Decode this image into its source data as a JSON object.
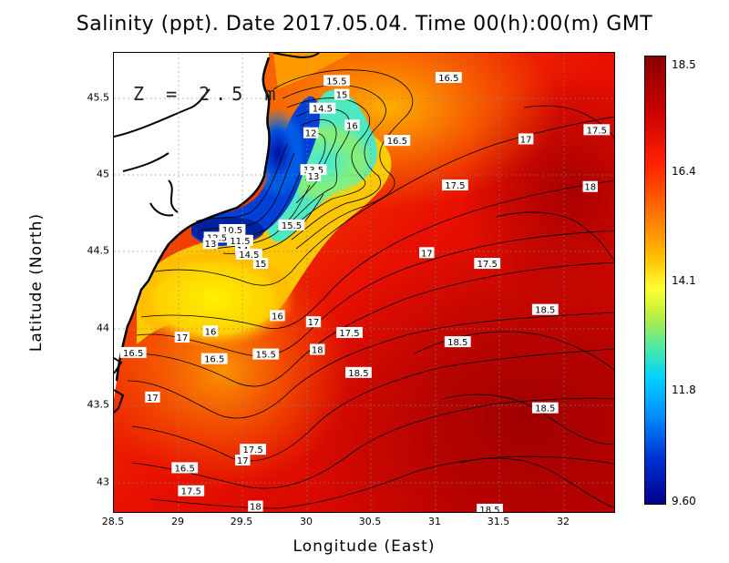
{
  "title": "Salinity (ppt). Date 2017.05.04. Time 00(h):00(m) GMT",
  "depth_label": "Z = 2.5 m",
  "x_axis": {
    "label": "Longitude (East)",
    "ticks": [
      "28.5",
      "29",
      "29.5",
      "30",
      "30.5",
      "31",
      "31.5",
      "32"
    ]
  },
  "y_axis": {
    "label": "Latitude (North)",
    "ticks": [
      "43",
      "43.5",
      "44",
      "44.5",
      "45",
      "45.5"
    ]
  },
  "colorbar": {
    "ticks": [
      "18.5",
      "16.4",
      "14.1",
      "11.8",
      "9.60"
    ],
    "min": 9.6,
    "max": 18.5
  },
  "contour_labels": [
    {
      "text": "15.5",
      "lon": 30.23,
      "lat": 45.62
    },
    {
      "text": "16.5",
      "lon": 31.1,
      "lat": 45.64
    },
    {
      "text": "15",
      "lon": 30.27,
      "lat": 45.53
    },
    {
      "text": "14.5",
      "lon": 30.12,
      "lat": 45.44
    },
    {
      "text": "16",
      "lon": 30.35,
      "lat": 45.33
    },
    {
      "text": "12",
      "lon": 30.03,
      "lat": 45.28
    },
    {
      "text": "16.5",
      "lon": 30.7,
      "lat": 45.23
    },
    {
      "text": "17",
      "lon": 31.7,
      "lat": 45.24
    },
    {
      "text": "17.5",
      "lon": 32.25,
      "lat": 45.3
    },
    {
      "text": "13.5",
      "lon": 30.05,
      "lat": 45.04
    },
    {
      "text": "13",
      "lon": 30.05,
      "lat": 45.0
    },
    {
      "text": "17.5",
      "lon": 31.15,
      "lat": 44.94
    },
    {
      "text": "18",
      "lon": 32.2,
      "lat": 44.93
    },
    {
      "text": "15.5",
      "lon": 29.88,
      "lat": 44.68
    },
    {
      "text": "10.5",
      "lon": 29.42,
      "lat": 44.65
    },
    {
      "text": "12.5",
      "lon": 29.3,
      "lat": 44.6
    },
    {
      "text": "11.5",
      "lon": 29.48,
      "lat": 44.58
    },
    {
      "text": "13",
      "lon": 29.25,
      "lat": 44.56
    },
    {
      "text": "14",
      "lon": 29.5,
      "lat": 44.52
    },
    {
      "text": "14.5",
      "lon": 29.55,
      "lat": 44.49
    },
    {
      "text": "15",
      "lon": 29.64,
      "lat": 44.43
    },
    {
      "text": "17",
      "lon": 30.93,
      "lat": 44.5
    },
    {
      "text": "17.5",
      "lon": 31.4,
      "lat": 44.43
    },
    {
      "text": "18.5",
      "lon": 31.85,
      "lat": 44.13
    },
    {
      "text": "16",
      "lon": 29.77,
      "lat": 44.09
    },
    {
      "text": "17",
      "lon": 30.05,
      "lat": 44.05
    },
    {
      "text": "16",
      "lon": 29.25,
      "lat": 43.99
    },
    {
      "text": "17.5",
      "lon": 30.33,
      "lat": 43.98
    },
    {
      "text": "17",
      "lon": 29.03,
      "lat": 43.95
    },
    {
      "text": "18.5",
      "lon": 31.17,
      "lat": 43.92
    },
    {
      "text": "18",
      "lon": 30.08,
      "lat": 43.87
    },
    {
      "text": "16.5",
      "lon": 28.65,
      "lat": 43.85
    },
    {
      "text": "15.5",
      "lon": 29.68,
      "lat": 43.84
    },
    {
      "text": "16.5",
      "lon": 29.28,
      "lat": 43.81
    },
    {
      "text": "18.5",
      "lon": 30.4,
      "lat": 43.72
    },
    {
      "text": "17",
      "lon": 28.8,
      "lat": 43.56
    },
    {
      "text": "18.5",
      "lon": 31.85,
      "lat": 43.49
    },
    {
      "text": "17.5",
      "lon": 29.58,
      "lat": 43.22
    },
    {
      "text": "17",
      "lon": 29.5,
      "lat": 43.15
    },
    {
      "text": "16.5",
      "lon": 29.05,
      "lat": 43.1
    },
    {
      "text": "17.5",
      "lon": 29.1,
      "lat": 42.95
    },
    {
      "text": "18",
      "lon": 29.6,
      "lat": 42.85
    },
    {
      "text": "18.5",
      "lon": 31.42,
      "lat": 42.83
    }
  ]
}
